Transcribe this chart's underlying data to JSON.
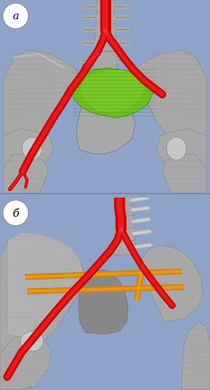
{
  "fig_width": 2.95,
  "fig_height": 5.47,
  "dpi": 100,
  "bg_color": "#8fa3c8",
  "panel_bg_a": "#8fa3c8",
  "panel_bg_b": "#8fa3c8",
  "label_a": "а",
  "label_b": "б",
  "bone_base": "#a8a8a8",
  "bone_light": "#c8c8c8",
  "bone_shadow": "#888888",
  "bone_dark": "#707070",
  "tumor_green1": "#4a9a10",
  "tumor_green2": "#6cc020",
  "tumor_green3": "#88d030",
  "vessel_red": "#cc0000",
  "vessel_red_hi": "#ff3333",
  "implant_orange": "#d4820a",
  "implant_orange_hi": "#f0a820",
  "screw_gray": "#c0c0c0",
  "label_circle_color": "#ffffff",
  "label_text_color": "#000000",
  "divider_color": "#6a7fa0"
}
